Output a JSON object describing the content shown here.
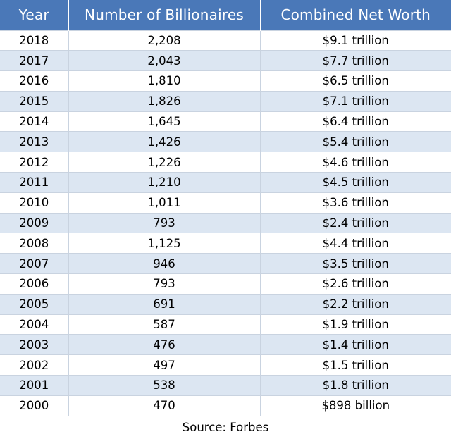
{
  "chart_data": {
    "type": "table",
    "columns": [
      "Year",
      "Number of Billionaires",
      "Combined Net Worth"
    ],
    "rows": [
      [
        "2018",
        "2,208",
        "$9.1 trillion"
      ],
      [
        "2017",
        "2,043",
        "$7.7 trillion"
      ],
      [
        "2016",
        "1,810",
        "$6.5 trillion"
      ],
      [
        "2015",
        "1,826",
        "$7.1 trillion"
      ],
      [
        "2014",
        "1,645",
        "$6.4 trillion"
      ],
      [
        "2013",
        "1,426",
        "$5.4 trillion"
      ],
      [
        "2012",
        "1,226",
        "$4.6 trillion"
      ],
      [
        "2011",
        "1,210",
        "$4.5 trillion"
      ],
      [
        "2010",
        "1,011",
        "$3.6 trillion"
      ],
      [
        "2009",
        "793",
        "$2.4 trillion"
      ],
      [
        "2008",
        "1,125",
        "$4.4 trillion"
      ],
      [
        "2007",
        "946",
        "$3.5 trillion"
      ],
      [
        "2006",
        "793",
        "$2.6 trillion"
      ],
      [
        "2005",
        "691",
        "$2.2 trillion"
      ],
      [
        "2004",
        "587",
        "$1.9 trillion"
      ],
      [
        "2003",
        "476",
        "$1.4 trillion"
      ],
      [
        "2002",
        "497",
        "$1.5 trillion"
      ],
      [
        "2001",
        "538",
        "$1.8 trillion"
      ],
      [
        "2000",
        "470",
        "$898 billion"
      ]
    ],
    "source": "Source: Forbes"
  },
  "colors": {
    "header_bg": "#4a78b8",
    "header_text": "#ffffff",
    "row_alt_bg": "#dce6f2",
    "row_bg": "#ffffff"
  }
}
